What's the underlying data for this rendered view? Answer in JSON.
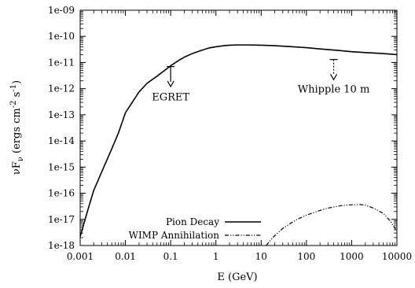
{
  "chart_data": {
    "type": "line",
    "title": "",
    "xlabel": "E (GeV)",
    "ylabel": {
      "main": "νF",
      "sub": "ν",
      "units_open": " (ergs cm",
      "exp1": "-2",
      "mid": " s",
      "exp2": "-1",
      "units_close": ")"
    },
    "xscale": "log",
    "yscale": "log",
    "xlim": [
      0.001,
      10000
    ],
    "ylim": [
      1e-18,
      1e-09
    ],
    "x_ticks": [
      {
        "value": 0.001,
        "label": "0.001"
      },
      {
        "value": 0.01,
        "label": "0.01"
      },
      {
        "value": 0.1,
        "label": "0.1"
      },
      {
        "value": 1,
        "label": "1"
      },
      {
        "value": 10,
        "label": "10"
      },
      {
        "value": 100,
        "label": "100"
      },
      {
        "value": 1000,
        "label": "1000"
      },
      {
        "value": 10000,
        "label": "10000"
      }
    ],
    "y_ticks": [
      {
        "value": 1e-18,
        "label": "1e-18"
      },
      {
        "value": 1e-17,
        "label": "1e-17"
      },
      {
        "value": 1e-16,
        "label": "1e-16"
      },
      {
        "value": 1e-15,
        "label": "1e-15"
      },
      {
        "value": 1e-14,
        "label": "1e-14"
      },
      {
        "value": 1e-13,
        "label": "1e-13"
      },
      {
        "value": 1e-12,
        "label": "1e-12"
      },
      {
        "value": 1e-11,
        "label": "1e-11"
      },
      {
        "value": 1e-10,
        "label": "1e-10"
      },
      {
        "value": 1e-09,
        "label": "1e-09"
      }
    ],
    "grid": false,
    "legend_position": "bottom-left",
    "series": [
      {
        "name": "Pion Decay",
        "style": "solid",
        "color": "#000000",
        "points": [
          [
            0.001,
            2.2e-18
          ],
          [
            0.0015,
            2.5e-17
          ],
          [
            0.002,
            1.3e-16
          ],
          [
            0.003,
            6.6e-16
          ],
          [
            0.005,
            5e-15
          ],
          [
            0.007,
            2e-14
          ],
          [
            0.01,
            1.2e-13
          ],
          [
            0.015,
            3.5e-13
          ],
          [
            0.02,
            7.5e-13
          ],
          [
            0.03,
            1.6e-12
          ],
          [
            0.05,
            3e-12
          ],
          [
            0.07,
            4.7e-12
          ],
          [
            0.1,
            7.5e-12
          ],
          [
            0.15,
            1.2e-11
          ],
          [
            0.2,
            1.6e-11
          ],
          [
            0.3,
            2.2e-11
          ],
          [
            0.5,
            3e-11
          ],
          [
            0.7,
            3.6e-11
          ],
          [
            1,
            4e-11
          ],
          [
            1.5,
            4.4e-11
          ],
          [
            2,
            4.6e-11
          ],
          [
            3,
            4.7e-11
          ],
          [
            5,
            4.7e-11
          ],
          [
            10,
            4.6e-11
          ],
          [
            20,
            4.4e-11
          ],
          [
            50,
            4e-11
          ],
          [
            100,
            3.7e-11
          ],
          [
            200,
            3.3e-11
          ],
          [
            500,
            2.9e-11
          ],
          [
            1000,
            2.6e-11
          ],
          [
            2000,
            2.4e-11
          ],
          [
            5000,
            2.2e-11
          ],
          [
            10000,
            2e-11
          ]
        ]
      },
      {
        "name": "WIMP Annihilation",
        "style": "dash-dot-dot",
        "color": "#000000",
        "points": [
          [
            13,
            1e-18
          ],
          [
            15,
            1.4e-18
          ],
          [
            20,
            2.4e-18
          ],
          [
            30,
            4.5e-18
          ],
          [
            50,
            8e-18
          ],
          [
            70,
            1.1e-17
          ],
          [
            100,
            1.45e-17
          ],
          [
            200,
            2.2e-17
          ],
          [
            300,
            2.7e-17
          ],
          [
            500,
            3.2e-17
          ],
          [
            700,
            3.5e-17
          ],
          [
            1000,
            3.6e-17
          ],
          [
            1500,
            3.7e-17
          ],
          [
            2000,
            3.5e-17
          ],
          [
            3000,
            2.7e-17
          ],
          [
            5000,
            1.7e-17
          ],
          [
            7000,
            9e-18
          ],
          [
            10000,
            3.5e-18
          ]
        ]
      }
    ],
    "annotations": [
      {
        "text": "EGRET",
        "type": "upper-limit",
        "style": "solid",
        "x": 0.1,
        "y_top": 7e-12,
        "y_bottom": 1.2e-12,
        "label_x": 0.1,
        "label_y": 5e-13
      },
      {
        "text": "Whipple 10 m",
        "type": "upper-limit",
        "style": "dotted",
        "x": 400,
        "y_top": 1.3e-11,
        "y_bottom": 2.2e-12,
        "label_x": 400,
        "label_y": 1e-12
      }
    ]
  }
}
